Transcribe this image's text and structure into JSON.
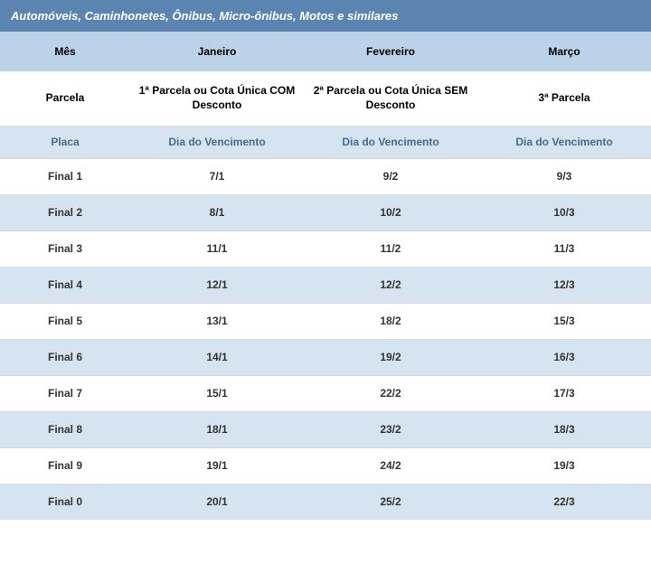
{
  "colors": {
    "title_bg": "#5b84b1",
    "title_text": "#ffffff",
    "row_light": "#ffffff",
    "row_medium": "#d6e3f0",
    "row_blue": "#bcd2e8",
    "placa_text": "#4a6a8a",
    "border": "#d9d9d9"
  },
  "title": "Automóveis, Caminhonetes, Ônibus, Micro-ônibus, Motos e similares",
  "header_months": {
    "label": "Mês",
    "cols": [
      "Janeiro",
      "Fevereiro",
      "Março"
    ]
  },
  "header_parcela": {
    "label": "Parcela",
    "cols": [
      "1ª Parcela ou Cota Única COM Desconto",
      "2ª Parcela ou Cota Única SEM Desconto",
      "3ª Parcela"
    ]
  },
  "header_placa": {
    "label": "Placa",
    "cols": [
      "Dia do Vencimento",
      "Dia do Vencimento",
      "Dia do Vencimento"
    ]
  },
  "rows": [
    {
      "label": "Final 1",
      "c1": "7/1",
      "c2": "9/2",
      "c3": "9/3"
    },
    {
      "label": "Final 2",
      "c1": "8/1",
      "c2": "10/2",
      "c3": "10/3"
    },
    {
      "label": "Final 3",
      "c1": "11/1",
      "c2": "11/2",
      "c3": "11/3"
    },
    {
      "label": "Final 4",
      "c1": "12/1",
      "c2": "12/2",
      "c3": "12/3"
    },
    {
      "label": "Final 5",
      "c1": "13/1",
      "c2": "18/2",
      "c3": "15/3"
    },
    {
      "label": "Final 6",
      "c1": "14/1",
      "c2": "19/2",
      "c3": "16/3"
    },
    {
      "label": "Final 7",
      "c1": "15/1",
      "c2": "22/2",
      "c3": "17/3"
    },
    {
      "label": "Final 8",
      "c1": "18/1",
      "c2": "23/2",
      "c3": "18/3"
    },
    {
      "label": "Final 9",
      "c1": "19/1",
      "c2": "24/2",
      "c3": "19/3"
    },
    {
      "label": "Final 0",
      "c1": "20/1",
      "c2": "25/2",
      "c3": "22/3"
    }
  ]
}
